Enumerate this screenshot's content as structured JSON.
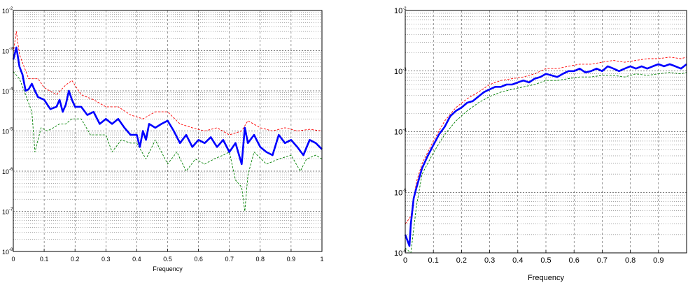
{
  "chart_data": [
    {
      "type": "line",
      "xlabel": "Frequency",
      "ylabel": "",
      "xlim": [
        0,
        1
      ],
      "ylim": [
        1e-08,
        0.01
      ],
      "yscale": "log",
      "grid": true,
      "x_ticks": [
        "0",
        "0.1",
        "0.2",
        "0.3",
        "0.4",
        "0.5",
        "0.6",
        "0.7",
        "0.8",
        "0.9",
        "1"
      ],
      "y_ticks": [
        {
          "base": "10",
          "exp": "-8"
        },
        {
          "base": "10",
          "exp": "-7"
        },
        {
          "base": "10",
          "exp": "-6"
        },
        {
          "base": "10",
          "exp": "-5"
        },
        {
          "base": "10",
          "exp": "-4"
        },
        {
          "base": "10",
          "exp": "-3"
        },
        {
          "base": "10",
          "exp": "-2"
        }
      ],
      "series": [
        {
          "color": "#0000ff",
          "style": "solid-thick",
          "x": [
            0,
            0.01,
            0.02,
            0.03,
            0.04,
            0.05,
            0.06,
            0.07,
            0.08,
            0.1,
            0.12,
            0.14,
            0.15,
            0.16,
            0.17,
            0.18,
            0.19,
            0.2,
            0.22,
            0.24,
            0.26,
            0.28,
            0.3,
            0.32,
            0.34,
            0.36,
            0.38,
            0.4,
            0.41,
            0.42,
            0.43,
            0.44,
            0.46,
            0.48,
            0.5,
            0.52,
            0.54,
            0.56,
            0.58,
            0.6,
            0.62,
            0.64,
            0.66,
            0.68,
            0.7,
            0.72,
            0.74,
            0.75,
            0.76,
            0.78,
            0.8,
            0.82,
            0.84,
            0.86,
            0.88,
            0.9,
            0.92,
            0.94,
            0.96,
            0.98,
            1.0
          ],
          "y": [
            0.0006,
            0.0012,
            0.0004,
            0.00025,
            0.0001,
            0.00011,
            0.00015,
            0.0001,
            7e-05,
            6e-05,
            3.5e-05,
            4e-05,
            6e-05,
            3e-05,
            4.5e-05,
            0.0001,
            6e-05,
            4e-05,
            4e-05,
            2.5e-05,
            3e-05,
            1.5e-05,
            2e-05,
            1.5e-05,
            2e-05,
            1.2e-05,
            8e-06,
            8e-06,
            4e-06,
            1e-05,
            6e-06,
            1.5e-05,
            1.2e-05,
            1.5e-05,
            1.8e-05,
            1e-05,
            5e-06,
            8e-06,
            4e-06,
            6e-06,
            5e-06,
            7e-06,
            4e-06,
            6e-06,
            3e-06,
            5e-06,
            1.5e-06,
            1.2e-05,
            5e-06,
            8e-06,
            4e-06,
            3e-06,
            2.5e-06,
            8e-06,
            5e-06,
            6e-06,
            4e-06,
            2.5e-06,
            6e-06,
            5e-06,
            3.5e-06
          ]
        },
        {
          "color": "#ff0000",
          "style": "dashed-thin",
          "x": [
            0,
            0.01,
            0.02,
            0.03,
            0.05,
            0.08,
            0.1,
            0.14,
            0.17,
            0.19,
            0.22,
            0.26,
            0.3,
            0.34,
            0.38,
            0.42,
            0.46,
            0.5,
            0.54,
            0.58,
            0.62,
            0.66,
            0.7,
            0.74,
            0.76,
            0.8,
            0.84,
            0.88,
            0.92,
            0.96,
            1.0
          ],
          "y": [
            0.0009,
            0.003,
            0.0008,
            0.0005,
            0.0002,
            0.0002,
            0.00012,
            8e-05,
            0.00014,
            0.00018,
            8e-05,
            6e-05,
            4e-05,
            4e-05,
            2.5e-05,
            2e-05,
            3e-05,
            3e-05,
            1.5e-05,
            1.2e-05,
            1e-05,
            1.2e-05,
            8e-06,
            1e-05,
            1.8e-05,
            1.2e-05,
            1e-05,
            1.2e-05,
            1e-05,
            1.1e-05,
            1e-05
          ]
        },
        {
          "color": "#008000",
          "style": "dashed-thin",
          "x": [
            0,
            0.02,
            0.04,
            0.06,
            0.07,
            0.09,
            0.11,
            0.13,
            0.15,
            0.17,
            0.19,
            0.22,
            0.25,
            0.3,
            0.32,
            0.35,
            0.38,
            0.4,
            0.43,
            0.46,
            0.5,
            0.53,
            0.56,
            0.59,
            0.62,
            0.65,
            0.68,
            0.7,
            0.72,
            0.74,
            0.75,
            0.76,
            0.78,
            0.82,
            0.86,
            0.9,
            0.93,
            0.95,
            0.98,
            1.0
          ],
          "y": [
            0.0003,
            0.0002,
            8e-05,
            3e-05,
            3e-06,
            1.2e-05,
            1e-05,
            1.2e-05,
            1.5e-05,
            1.5e-05,
            2e-05,
            2e-05,
            8e-06,
            8e-06,
            3e-06,
            6e-06,
            5e-06,
            5e-06,
            2e-06,
            6e-06,
            1.5e-06,
            3e-06,
            1e-06,
            2e-06,
            1.5e-06,
            2e-06,
            2.5e-06,
            3e-06,
            6e-07,
            4e-07,
            1e-07,
            8e-07,
            3e-06,
            1.5e-06,
            2e-06,
            2.5e-06,
            1e-06,
            2e-06,
            2.5e-06,
            2e-06
          ]
        }
      ]
    },
    {
      "type": "line",
      "xlabel": "Frequency",
      "ylabel": "",
      "xlim": [
        0,
        1
      ],
      "ylim": [
        1e-06,
        0.01
      ],
      "yscale": "log",
      "grid": true,
      "x_ticks": [
        "0",
        "0.1",
        "0.2",
        "0.3",
        "0.4",
        "0.5",
        "0.6",
        "0.7",
        "0.8",
        "0.9"
      ],
      "y_ticks": [
        {
          "base": "10",
          "exp": "-6"
        },
        {
          "base": "10",
          "exp": "-5"
        },
        {
          "base": "10",
          "exp": "-4"
        },
        {
          "base": "10",
          "exp": "-3"
        },
        {
          "base": "10",
          "exp": "-2"
        }
      ],
      "series": [
        {
          "color": "#0000ff",
          "style": "solid-thick",
          "x": [
            0,
            0.01,
            0.015,
            0.02,
            0.03,
            0.04,
            0.06,
            0.08,
            0.1,
            0.12,
            0.14,
            0.16,
            0.18,
            0.2,
            0.22,
            0.24,
            0.26,
            0.28,
            0.3,
            0.32,
            0.34,
            0.36,
            0.38,
            0.4,
            0.42,
            0.44,
            0.46,
            0.48,
            0.5,
            0.52,
            0.54,
            0.56,
            0.58,
            0.6,
            0.62,
            0.64,
            0.66,
            0.68,
            0.7,
            0.72,
            0.74,
            0.76,
            0.78,
            0.8,
            0.82,
            0.84,
            0.86,
            0.88,
            0.9,
            0.92,
            0.94,
            0.96,
            0.98,
            1.0
          ],
          "y": [
            2e-06,
            1.5e-06,
            1.3e-06,
            3e-06,
            8e-06,
            1.2e-05,
            2.5e-05,
            4e-05,
            6e-05,
            9e-05,
            0.00012,
            0.00018,
            0.00022,
            0.00025,
            0.0003,
            0.00032,
            0.00038,
            0.00045,
            0.0005,
            0.00055,
            0.00055,
            0.0006,
            0.0006,
            0.00065,
            0.0007,
            0.00065,
            0.00075,
            0.0008,
            0.0009,
            0.00085,
            0.0008,
            0.0009,
            0.001,
            0.001,
            0.0011,
            0.00095,
            0.001,
            0.0011,
            0.001,
            0.0012,
            0.0011,
            0.001,
            0.0011,
            0.0012,
            0.0011,
            0.0012,
            0.0011,
            0.0012,
            0.0013,
            0.0012,
            0.0013,
            0.0012,
            0.0011,
            0.0013
          ]
        },
        {
          "color": "#ff0000",
          "style": "dashed-thin",
          "x": [
            0,
            0.02,
            0.04,
            0.06,
            0.1,
            0.14,
            0.18,
            0.22,
            0.26,
            0.3,
            0.34,
            0.38,
            0.42,
            0.46,
            0.5,
            0.54,
            0.58,
            0.62,
            0.66,
            0.7,
            0.74,
            0.78,
            0.82,
            0.86,
            0.9,
            0.94,
            0.98,
            1.0
          ],
          "y": [
            3e-06,
            4e-06,
            1.5e-05,
            3e-05,
            7e-05,
            0.00015,
            0.00025,
            0.00035,
            0.00045,
            0.0006,
            0.0007,
            0.00075,
            0.0008,
            0.0009,
            0.0011,
            0.0011,
            0.0012,
            0.0013,
            0.0013,
            0.0014,
            0.0015,
            0.0014,
            0.0015,
            0.0016,
            0.0016,
            0.0017,
            0.0016,
            0.0017
          ]
        },
        {
          "color": "#008000",
          "style": "dashed-thin",
          "x": [
            0,
            0.02,
            0.04,
            0.06,
            0.1,
            0.14,
            0.18,
            0.22,
            0.26,
            0.3,
            0.34,
            0.38,
            0.42,
            0.46,
            0.5,
            0.54,
            0.58,
            0.62,
            0.66,
            0.7,
            0.74,
            0.78,
            0.82,
            0.86,
            0.9,
            0.94,
            0.98,
            1.0
          ],
          "y": [
            1.2e-06,
            1e-06,
            6e-06,
            2e-05,
            4.5e-05,
            9e-05,
            0.00015,
            0.00022,
            0.0003,
            0.00038,
            0.00045,
            0.0005,
            0.00055,
            0.0006,
            0.0007,
            0.0007,
            0.00075,
            0.0008,
            0.0008,
            0.00085,
            0.00085,
            0.0008,
            0.0009,
            0.00085,
            0.0009,
            0.00095,
            0.0009,
            0.00095
          ]
        }
      ]
    }
  ]
}
